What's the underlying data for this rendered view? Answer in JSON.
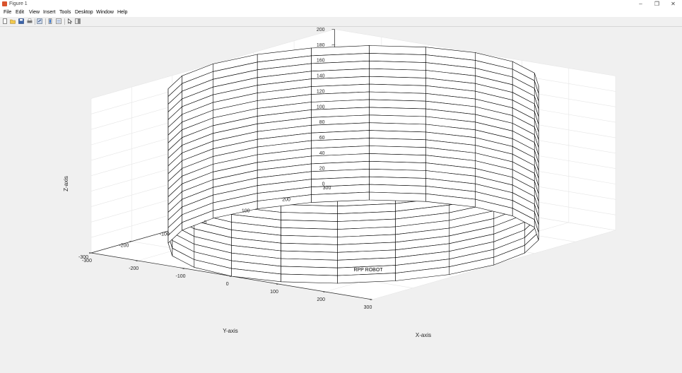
{
  "window": {
    "title": "Figure 1"
  },
  "menubar": {
    "items": [
      "File",
      "Edit",
      "View",
      "Insert",
      "Tools",
      "Desktop",
      "Window",
      "Help"
    ]
  },
  "window_controls": {
    "minimize": "–",
    "restore": "❐",
    "close": "✕"
  },
  "toolbar": {
    "icons": [
      "new-figure-icon",
      "open-file-icon",
      "save-icon",
      "print-icon",
      "export-icon",
      "insert-colorbar-icon",
      "insert-legend-icon",
      "pointer-icon",
      "plot-tools-icon"
    ]
  },
  "chart_data": {
    "type": "surface-3d",
    "title": "RPP ROBOT",
    "xlabel": "X-axis",
    "ylabel": "Y-axis",
    "zlabel": "Z-axis",
    "xlim": [
      -300,
      300
    ],
    "ylim": [
      -300,
      300
    ],
    "zlim": [
      0,
      200
    ],
    "xticks": [
      "-300",
      "-200",
      "-100",
      "0",
      "100",
      "200",
      "300"
    ],
    "yticks": [
      "-300",
      "-200",
      "-100",
      "0",
      "100",
      "200",
      "300"
    ],
    "zticks": [
      "0",
      "20",
      "40",
      "60",
      "80",
      "100",
      "120",
      "140",
      "160",
      "180",
      "200"
    ],
    "grid": true,
    "surface": {
      "shape": "cylinder",
      "radius": 300,
      "z_range": [
        0,
        200
      ],
      "face_color": "white",
      "edge_color": "black"
    }
  }
}
